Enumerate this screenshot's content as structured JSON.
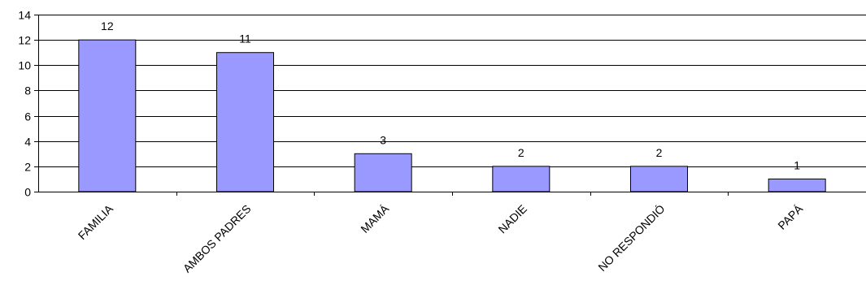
{
  "chart_data": {
    "type": "bar",
    "title": "",
    "xlabel": "",
    "ylabel": "",
    "categories": [
      "FAMILIA",
      "AMBOS PADRES",
      "MAMÁ",
      "NADIE",
      "NO RESPONDIÓ",
      "PAPÁ"
    ],
    "values": [
      12,
      11,
      3,
      2,
      2,
      1
    ],
    "data_labels": [
      "12",
      "11",
      "3",
      "2",
      "2",
      "1"
    ],
    "ylim": [
      0,
      14
    ],
    "y_ticks": [
      0,
      2,
      4,
      6,
      8,
      10,
      12,
      14
    ],
    "y_tick_labels": [
      "0",
      "2",
      "4",
      "6",
      "8",
      "10",
      "12",
      "14"
    ],
    "grid": true,
    "legend": "none",
    "colors": {
      "bar_fill": "#9999ff",
      "bar_stroke": "#000000",
      "gridline": "#000000",
      "axis": "#000000"
    }
  }
}
